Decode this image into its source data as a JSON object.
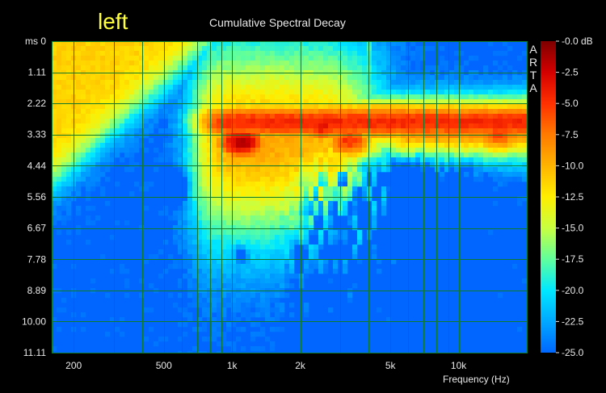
{
  "header": {
    "channel_label": "left",
    "chart_title": "Cumulative Spectral Decay",
    "watermark": [
      "A",
      "R",
      "T",
      "A"
    ]
  },
  "chart_data": {
    "type": "heatmap",
    "title": "Cumulative Spectral Decay",
    "xlabel": "Frequency (Hz)",
    "ylabel": "ms",
    "x_scale": "log",
    "xlim": [
      160,
      20000
    ],
    "ylim": [
      0,
      11.11
    ],
    "y_ticks": [
      "ms 0",
      "1.11",
      "2.22",
      "3.33",
      "4.44",
      "5.56",
      "6.67",
      "7.78",
      "8.89",
      "10.00",
      "11.11"
    ],
    "y_tick_values": [
      0,
      1.11,
      2.22,
      3.33,
      4.44,
      5.56,
      6.67,
      7.78,
      8.89,
      10.0,
      11.11
    ],
    "x_ticks": [
      {
        "label": "200",
        "value": 200
      },
      {
        "label": "500",
        "value": 500
      },
      {
        "label": "1k",
        "value": 1000
      },
      {
        "label": "2k",
        "value": 2000
      },
      {
        "label": "5k",
        "value": 5000
      },
      {
        "label": "10k",
        "value": 10000
      }
    ],
    "x_gridlines": [
      200,
      300,
      400,
      500,
      600,
      700,
      800,
      900,
      1000,
      2000,
      3000,
      4000,
      5000,
      6000,
      7000,
      8000,
      9000,
      10000,
      20000
    ],
    "grid": true,
    "colorbar": {
      "unit": "dB",
      "range": [
        -25,
        0
      ],
      "tick_labels": [
        "-0.0 dB",
        "-2.5",
        "-5.0",
        "-7.5",
        "-10.0",
        "-12.5",
        "-15.0",
        "-17.5",
        "-20.0",
        "-22.5",
        "-25.0"
      ],
      "tick_values": [
        0,
        -2.5,
        -5,
        -7.5,
        -10,
        -12.5,
        -15,
        -17.5,
        -20,
        -22.5,
        -25
      ],
      "colors": [
        "#7f0000",
        "#d40000",
        "#ff3000",
        "#ff7a00",
        "#ffb400",
        "#ffee00",
        "#c8ff40",
        "#60ff9c",
        "#00e8ff",
        "#00a8ff",
        "#0066ff"
      ]
    },
    "features": [
      {
        "name": "main-decay-band",
        "x_range_hz": [
          700,
          18000
        ],
        "t_ms": 2.8,
        "level_db": -5
      },
      {
        "name": "hotspot",
        "x_hz": 1100,
        "t_ms": 3.6,
        "level_db": -1.5
      },
      {
        "name": "hotspot",
        "x_hz": 2500,
        "t_ms": 3.0,
        "level_db": -3.5
      },
      {
        "name": "hotspot",
        "x_hz": 3300,
        "t_ms": 3.6,
        "level_db": -4.5
      },
      {
        "name": "hotspot",
        "x_hz": 15000,
        "t_ms": 3.3,
        "level_db": -5.5
      },
      {
        "name": "resonance-streak",
        "x_hz": 4000,
        "t_ms_range": [
          0,
          3.0
        ],
        "level_db": -18
      },
      {
        "name": "resonance-streak",
        "x_hz": 2000,
        "t_ms_range": [
          0,
          2.4
        ],
        "level_db": -18
      }
    ]
  }
}
